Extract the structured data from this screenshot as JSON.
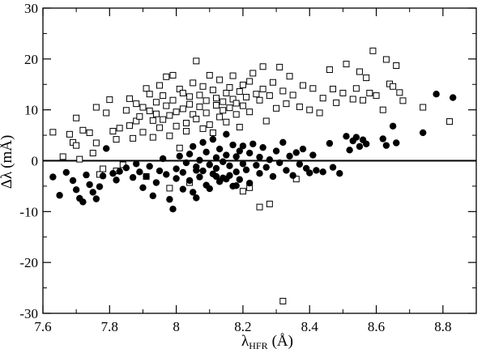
{
  "chart_data": {
    "type": "scatter",
    "title": "",
    "xlabel": {
      "symbol": "λ",
      "subscript": "HFR",
      "unit": "(Å)"
    },
    "ylabel": {
      "symbol": "Δλ",
      "unit": "(mÅ)"
    },
    "xlim": [
      7.6,
      8.9
    ],
    "ylim": [
      -30,
      30
    ],
    "xticks": [
      7.6,
      7.8,
      8.0,
      8.2,
      8.4,
      8.6,
      8.8
    ],
    "xtick_labels": [
      "7.6",
      "7.8",
      "8",
      "8.2",
      "8.4",
      "8.6",
      "8.8"
    ],
    "yticks": [
      -30,
      -20,
      -10,
      0,
      10,
      20,
      30
    ],
    "ytick_labels": [
      "-30",
      "-20",
      "-10",
      "0",
      "10",
      "20",
      "30"
    ],
    "grid": false,
    "reference_line_y": 0,
    "series": [
      {
        "marker": "open-square",
        "color": "#000000",
        "points": [
          [
            7.63,
            5.6
          ],
          [
            7.66,
            0.8
          ],
          [
            7.68,
            5.2
          ],
          [
            7.69,
            3.6
          ],
          [
            7.7,
            8.4
          ],
          [
            7.7,
            3.0
          ],
          [
            7.71,
            0.3
          ],
          [
            7.72,
            6.0
          ],
          [
            7.74,
            5.5
          ],
          [
            7.75,
            1.5
          ],
          [
            7.76,
            10.5
          ],
          [
            7.76,
            3.5
          ],
          [
            7.77,
            -2.7
          ],
          [
            7.78,
            -1.6
          ],
          [
            7.79,
            9.4
          ],
          [
            7.8,
            12.0
          ],
          [
            7.81,
            5.8
          ],
          [
            7.82,
            4.2
          ],
          [
            7.83,
            6.4
          ],
          [
            7.84,
            -0.8
          ],
          [
            7.85,
            9.9
          ],
          [
            7.86,
            6.9
          ],
          [
            7.86,
            12.2
          ],
          [
            7.87,
            4.4
          ],
          [
            7.88,
            11.2
          ],
          [
            7.88,
            7.8
          ],
          [
            7.89,
            8.7
          ],
          [
            7.9,
            10.5
          ],
          [
            7.9,
            5.6
          ],
          [
            7.91,
            14.2
          ],
          [
            7.92,
            13.1
          ],
          [
            7.92,
            9.8
          ],
          [
            7.93,
            7.9
          ],
          [
            7.93,
            4.6
          ],
          [
            7.94,
            11.5
          ],
          [
            7.94,
            9.2
          ],
          [
            7.95,
            6.5
          ],
          [
            7.95,
            14.8
          ],
          [
            7.96,
            8.1
          ],
          [
            7.96,
            12.8
          ],
          [
            7.97,
            10.8
          ],
          [
            7.97,
            16.5
          ],
          [
            7.98,
            4.9
          ],
          [
            7.98,
            8.9
          ],
          [
            7.99,
            16.8
          ],
          [
            7.99,
            11.9
          ],
          [
            8.0,
            6.8
          ],
          [
            8.0,
            9.6
          ],
          [
            8.01,
            14.1
          ],
          [
            8.01,
            2.5
          ],
          [
            8.02,
            13.3
          ],
          [
            8.02,
            10.2
          ],
          [
            8.03,
            7.4
          ],
          [
            8.03,
            5.8
          ],
          [
            8.04,
            12.6
          ],
          [
            8.04,
            11.1
          ],
          [
            8.05,
            9.1
          ],
          [
            8.05,
            15.3
          ],
          [
            8.06,
            19.6
          ],
          [
            8.06,
            8.2
          ],
          [
            8.07,
            12.9
          ],
          [
            8.07,
            10.6
          ],
          [
            8.08,
            6.3
          ],
          [
            8.08,
            14.6
          ],
          [
            8.09,
            11.8
          ],
          [
            8.09,
            9.4
          ],
          [
            8.1,
            16.8
          ],
          [
            8.1,
            7.1
          ],
          [
            8.11,
            13.9
          ],
          [
            8.11,
            5.5
          ],
          [
            8.12,
            10.9
          ],
          [
            8.12,
            12.3
          ],
          [
            8.13,
            8.6
          ],
          [
            8.13,
            15.9
          ],
          [
            8.14,
            9.9
          ],
          [
            8.14,
            11.6
          ],
          [
            8.15,
            7.6
          ],
          [
            8.15,
            13.3
          ],
          [
            8.16,
            10.4
          ],
          [
            8.16,
            14.4
          ],
          [
            8.17,
            12.1
          ],
          [
            8.17,
            16.7
          ],
          [
            8.18,
            9.1
          ],
          [
            8.18,
            11.3
          ],
          [
            8.19,
            13.6
          ],
          [
            8.19,
            6.6
          ],
          [
            8.2,
            14.9
          ],
          [
            8.2,
            10.8
          ],
          [
            8.21,
            12.5
          ],
          [
            8.22,
            15.6
          ],
          [
            8.22,
            9.6
          ],
          [
            8.23,
            17.2
          ],
          [
            8.24,
            13.1
          ],
          [
            8.25,
            11.9
          ],
          [
            8.26,
            18.5
          ],
          [
            8.26,
            14.1
          ],
          [
            8.27,
            7.8
          ],
          [
            8.28,
            12.8
          ],
          [
            8.29,
            15.4
          ],
          [
            8.3,
            10.3
          ],
          [
            8.31,
            18.4
          ],
          [
            8.32,
            13.7
          ],
          [
            8.33,
            11.2
          ],
          [
            8.34,
            16.6
          ],
          [
            8.35,
            12.9
          ],
          [
            8.36,
            -3.6
          ],
          [
            8.37,
            10.6
          ],
          [
            8.38,
            14.8
          ],
          [
            8.4,
            10.0
          ],
          [
            8.41,
            14.2
          ],
          [
            8.43,
            9.4
          ],
          [
            8.44,
            12.3
          ],
          [
            8.46,
            17.9
          ],
          [
            8.47,
            14.1
          ],
          [
            8.48,
            11.4
          ],
          [
            8.5,
            13.3
          ],
          [
            8.51,
            19.0
          ],
          [
            8.53,
            12.1
          ],
          [
            8.54,
            14.2
          ],
          [
            8.55,
            17.5
          ],
          [
            8.56,
            11.9
          ],
          [
            8.57,
            16.3
          ],
          [
            8.58,
            13.3
          ],
          [
            8.59,
            21.6
          ],
          [
            8.6,
            12.8
          ],
          [
            8.62,
            10.0
          ],
          [
            8.63,
            19.9
          ],
          [
            8.64,
            15.1
          ],
          [
            8.65,
            14.6
          ],
          [
            8.66,
            18.7
          ],
          [
            8.67,
            13.4
          ],
          [
            8.68,
            11.8
          ],
          [
            8.74,
            10.5
          ],
          [
            8.82,
            7.7
          ],
          [
            8.2,
            -6.0
          ],
          [
            8.22,
            -5.3
          ],
          [
            8.25,
            -9.1
          ],
          [
            8.28,
            -8.5
          ],
          [
            8.32,
            -27.6
          ],
          [
            8.04,
            -4.3
          ],
          [
            7.98,
            -5.4
          ],
          [
            7.91,
            -3.1
          ],
          [
            7.82,
            -2.0
          ]
        ]
      },
      {
        "marker": "filled-circle",
        "color": "#000000",
        "points": [
          [
            7.63,
            -3.2
          ],
          [
            7.65,
            -6.8
          ],
          [
            7.67,
            -2.3
          ],
          [
            7.69,
            -3.9
          ],
          [
            7.7,
            -5.7
          ],
          [
            7.71,
            -7.4
          ],
          [
            7.72,
            -8.1
          ],
          [
            7.73,
            -2.8
          ],
          [
            7.74,
            -4.7
          ],
          [
            7.75,
            -6.2
          ],
          [
            7.76,
            -7.5
          ],
          [
            7.77,
            -5.1
          ],
          [
            7.78,
            -3.0
          ],
          [
            7.79,
            2.4
          ],
          [
            7.81,
            -2.5
          ],
          [
            7.82,
            -3.8
          ],
          [
            7.83,
            -2.1
          ],
          [
            7.85,
            -1.4
          ],
          [
            7.87,
            -3.3
          ],
          [
            7.88,
            -0.6
          ],
          [
            7.89,
            -2.2
          ],
          [
            7.9,
            -5.3
          ],
          [
            7.91,
            -3.1
          ],
          [
            7.92,
            -1.1
          ],
          [
            7.93,
            -6.9
          ],
          [
            7.94,
            -4.3
          ],
          [
            7.95,
            -2.0
          ],
          [
            7.96,
            0.4
          ],
          [
            7.97,
            -2.7
          ],
          [
            7.98,
            -7.6
          ],
          [
            7.99,
            -9.5
          ],
          [
            8.0,
            -3.5
          ],
          [
            8.0,
            -1.6
          ],
          [
            8.01,
            0.9
          ],
          [
            8.02,
            -5.6
          ],
          [
            8.02,
            -2.3
          ],
          [
            8.03,
            -0.4
          ],
          [
            8.04,
            1.3
          ],
          [
            8.04,
            -3.9
          ],
          [
            8.05,
            -6.2
          ],
          [
            8.05,
            2.8
          ],
          [
            8.06,
            -1.2
          ],
          [
            8.06,
            -7.3
          ],
          [
            8.07,
            0.1
          ],
          [
            8.07,
            -3.2
          ],
          [
            8.08,
            3.6
          ],
          [
            8.08,
            -2.0
          ],
          [
            8.09,
            -4.8
          ],
          [
            8.09,
            1.7
          ],
          [
            8.1,
            -0.8
          ],
          [
            8.1,
            -5.5
          ],
          [
            8.11,
            4.2
          ],
          [
            8.11,
            -2.6
          ],
          [
            8.12,
            0.6
          ],
          [
            8.12,
            -1.5
          ],
          [
            8.13,
            -4.1
          ],
          [
            8.13,
            2.3
          ],
          [
            8.14,
            -0.2
          ],
          [
            8.14,
            -3.4
          ],
          [
            8.15,
            1.1
          ],
          [
            8.15,
            5.2
          ],
          [
            8.16,
            -2.9
          ],
          [
            8.16,
            -1.0
          ],
          [
            8.17,
            3.1
          ],
          [
            8.17,
            -5.0
          ],
          [
            8.18,
            0.8
          ],
          [
            8.18,
            -2.2
          ],
          [
            8.19,
            1.9
          ],
          [
            8.19,
            -3.7
          ],
          [
            8.2,
            -0.6
          ],
          [
            8.2,
            2.9
          ],
          [
            8.21,
            -1.8
          ],
          [
            8.22,
            1.5
          ],
          [
            8.22,
            -4.4
          ],
          [
            8.23,
            3.3
          ],
          [
            8.24,
            -0.9
          ],
          [
            8.25,
            0.7
          ],
          [
            8.25,
            -2.5
          ],
          [
            8.26,
            2.6
          ],
          [
            8.27,
            -1.3
          ],
          [
            8.28,
            0.2
          ],
          [
            8.29,
            -3.1
          ],
          [
            8.3,
            1.9
          ],
          [
            8.31,
            -0.4
          ],
          [
            8.32,
            3.6
          ],
          [
            8.33,
            -1.9
          ],
          [
            8.34,
            0.9
          ],
          [
            8.35,
            -2.9
          ],
          [
            8.36,
            1.6
          ],
          [
            8.37,
            -0.7
          ],
          [
            8.38,
            2.3
          ],
          [
            8.39,
            -1.5
          ],
          [
            8.4,
            -2.4
          ],
          [
            8.41,
            1.1
          ],
          [
            8.42,
            -1.9
          ],
          [
            8.44,
            -2.2
          ],
          [
            8.46,
            3.4
          ],
          [
            8.47,
            -1.3
          ],
          [
            8.49,
            -2.5
          ],
          [
            8.51,
            4.8
          ],
          [
            8.52,
            2.1
          ],
          [
            8.53,
            3.9
          ],
          [
            8.54,
            4.6
          ],
          [
            8.55,
            2.8
          ],
          [
            8.56,
            4.1
          ],
          [
            8.57,
            3.3
          ],
          [
            8.62,
            4.3
          ],
          [
            8.63,
            3.0
          ],
          [
            8.65,
            6.8
          ],
          [
            8.66,
            3.5
          ],
          [
            8.74,
            5.5
          ],
          [
            8.78,
            13.1
          ],
          [
            8.83,
            12.4
          ],
          [
            8.12,
            -3.1
          ],
          [
            8.06,
            -1.9
          ],
          [
            8.15,
            -3.6
          ],
          [
            8.18,
            -4.9
          ]
        ]
      }
    ]
  }
}
